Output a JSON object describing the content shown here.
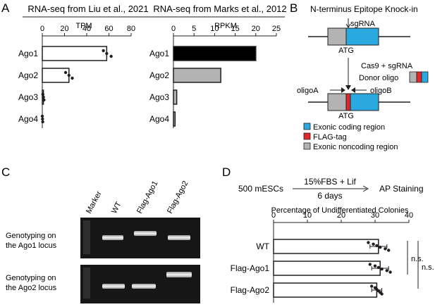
{
  "panels": {
    "A": "A",
    "B": "B",
    "C": "C",
    "D": "D"
  },
  "chart_data": [
    {
      "type": "bar",
      "title": "RNA-seq from Liu et al., 2021",
      "xlabel": "TPM",
      "categories": [
        "Ago1",
        "Ago2",
        "Ago3",
        "Ago4"
      ],
      "values": [
        58,
        24,
        1,
        0
      ],
      "xlim": [
        0,
        80
      ],
      "ticks": [
        "0",
        "20",
        "40",
        "60",
        "80"
      ],
      "points": [
        [
          55,
          58,
          62
        ],
        [
          21,
          24,
          27
        ],
        [
          0.5,
          1,
          1.5
        ],
        [
          0,
          0.2,
          0.4
        ]
      ]
    },
    {
      "type": "bar",
      "title": "RNA-seq from Marks et al., 2012",
      "xlabel": "RPKM",
      "categories": [
        "Ago1",
        "Ago2",
        "Ago3",
        "Ago4"
      ],
      "values": [
        20,
        11.5,
        0.8,
        0.4
      ],
      "colors": [
        "#000000",
        "#b3b3b3",
        "#b3b3b3",
        "#b3b3b3"
      ],
      "xlim": [
        0,
        25
      ],
      "ticks": [
        "0",
        "5",
        "10",
        "15",
        "20",
        "25"
      ]
    },
    {
      "type": "bar",
      "title": "Percentage of Undifferentiated Colonies",
      "categories": [
        "WT",
        "Flag-Ago1",
        "Flag-Ago2"
      ],
      "values": [
        31,
        31.5,
        30.5
      ],
      "errors": [
        2.5,
        2.5,
        1.5
      ],
      "xlim": [
        0,
        40
      ],
      "ticks": [
        "0",
        "10",
        "20",
        "30",
        "40"
      ],
      "points": [
        [
          28,
          29.5,
          30.5,
          31.5,
          33,
          34
        ],
        [
          28.5,
          30,
          31,
          32,
          33.5,
          34.5
        ],
        [
          29,
          30,
          30.5,
          31,
          31.5,
          32
        ]
      ],
      "significance": [
        "n.s.",
        "n.s."
      ]
    }
  ],
  "schematic": {
    "title": "N-terminus Epitope Knock-in",
    "sgrna": "sgRNA",
    "atg_top": "ATG",
    "atg_bottom": "ATG",
    "cas9": "Cas9 + sgRNA",
    "donor": "Donor oligo",
    "oligo_a": "oligoA",
    "oligo_b": "oligoB",
    "legend": [
      "Exonic coding region",
      "FLAG-tag",
      "Exonic noncoding region"
    ],
    "colors": {
      "coding": "#29a9e0",
      "flag": "#e0282c",
      "noncoding": "#b3b3b3"
    }
  },
  "gel": {
    "lanes": [
      "Marker",
      "WT",
      "Flag-Ago1",
      "Flag-Ago2"
    ],
    "rows": [
      [
        "Genotyping on",
        "the Ago1 locus"
      ],
      [
        "Genotyping on",
        "the Ago2 locus"
      ]
    ]
  },
  "assay": {
    "cells": "500 mESCs",
    "condition": "15%FBS + Lif",
    "duration": "6 days",
    "readout": "AP Staining"
  }
}
